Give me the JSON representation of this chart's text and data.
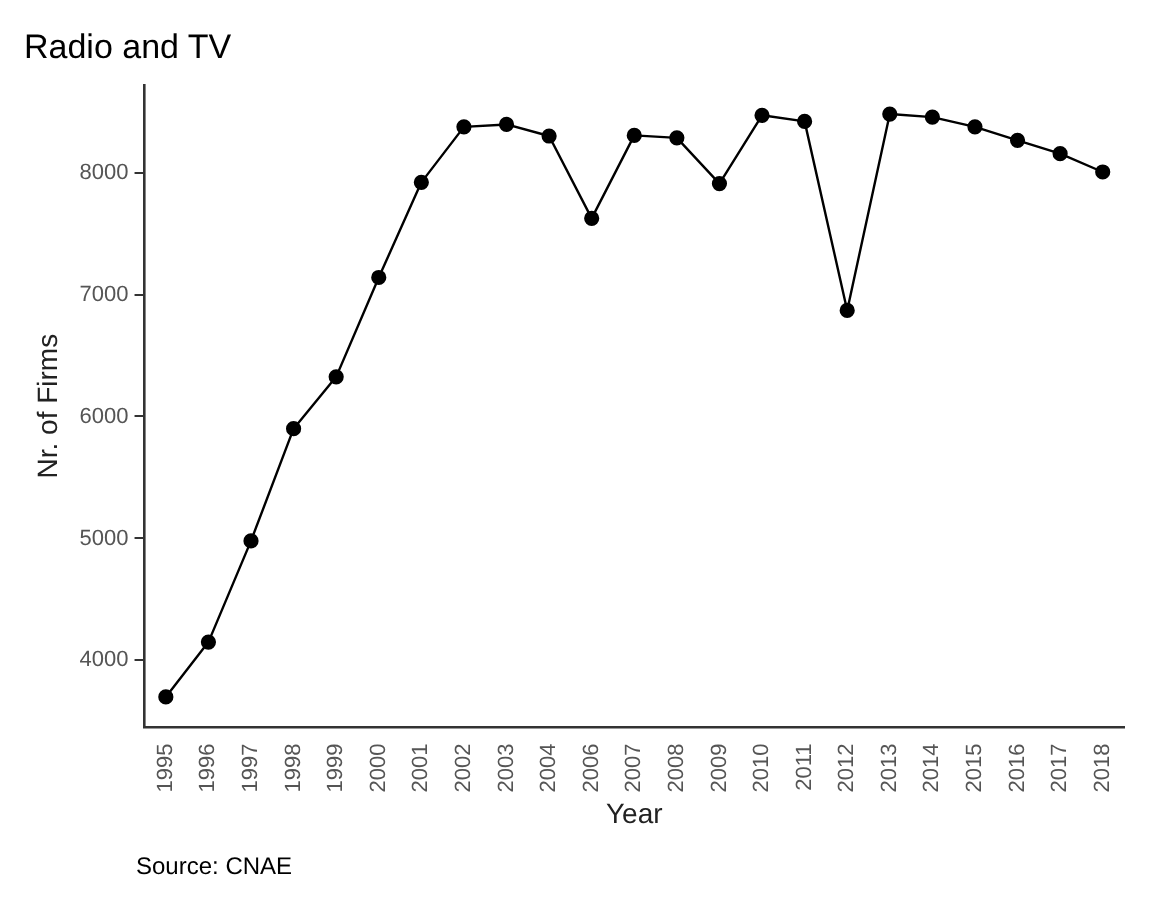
{
  "chart_data": {
    "type": "line",
    "title": "Radio and TV",
    "xlabel": "Year",
    "ylabel": "Nr. of Firms",
    "categories": [
      "1995",
      "1996",
      "1997",
      "1998",
      "1999",
      "2000",
      "2001",
      "2002",
      "2003",
      "2004",
      "2006",
      "2007",
      "2008",
      "2009",
      "2010",
      "2011",
      "2012",
      "2013",
      "2014",
      "2015",
      "2016",
      "2017",
      "2018"
    ],
    "series": [
      {
        "color": "#000000",
        "values": [
          3700,
          4150,
          4980,
          5900,
          6325,
          7140,
          7920,
          8375,
          8395,
          8300,
          7625,
          8305,
          8285,
          7910,
          8470,
          8420,
          6870,
          8480,
          8455,
          8375,
          8265,
          8155,
          8005
        ]
      }
    ],
    "ylim": [
      3450,
      8720
    ],
    "yticks": [
      4000,
      5000,
      6000,
      7000,
      8000
    ],
    "grid": false,
    "legend": false,
    "marker": "circle",
    "line_style": "solid",
    "annotations": [
      "Source: CNAE"
    ]
  }
}
